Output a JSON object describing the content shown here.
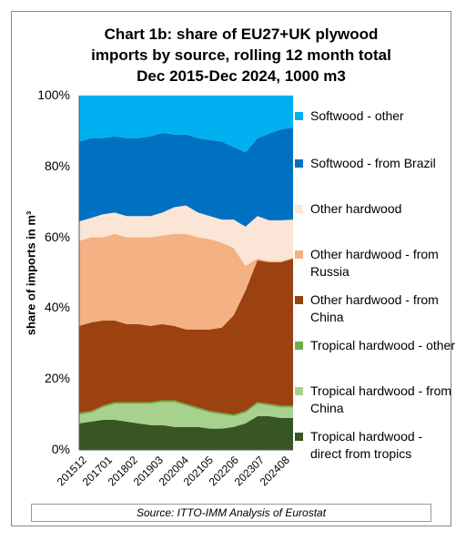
{
  "chart_data": {
    "type": "area",
    "stacked": true,
    "percent": true,
    "title_lines": [
      "Chart 1b: share of EU27+UK plywood",
      "imports by source, rolling 12 month total",
      "Dec 2015-Dec 2024, 1000 m3"
    ],
    "ylabel": "share of imports in m³",
    "xlabel": "",
    "ylim": [
      0,
      100
    ],
    "yticks": [
      "0%",
      "20%",
      "40%",
      "60%",
      "80%",
      "100%"
    ],
    "xtick_labels": [
      "201512",
      "201701",
      "201802",
      "201903",
      "202004",
      "202105",
      "202206",
      "202307",
      "202408"
    ],
    "x": [
      "2015-12",
      "2016-06",
      "2016-12",
      "2017-06",
      "2017-12",
      "2018-06",
      "2018-12",
      "2019-06",
      "2019-12",
      "2020-06",
      "2020-12",
      "2021-06",
      "2021-12",
      "2022-06",
      "2022-12",
      "2023-06",
      "2023-12",
      "2024-06",
      "2024-12"
    ],
    "legend_position": "right",
    "series": [
      {
        "name": "Tropical hardwood - direct from tropics",
        "color": "#375623",
        "values": [
          7.5,
          8.0,
          8.5,
          8.5,
          8.0,
          7.5,
          7.0,
          7.0,
          6.5,
          6.5,
          6.5,
          6.0,
          6.0,
          6.5,
          7.5,
          9.5,
          9.5,
          9.0,
          9.0
        ]
      },
      {
        "name": "Tropical hardwood - from China",
        "color": "#a9d18e",
        "values": [
          2.5,
          2.5,
          3.5,
          4.5,
          5.0,
          5.5,
          6.0,
          6.5,
          7.0,
          6.0,
          5.0,
          4.5,
          4.0,
          3.0,
          3.0,
          3.5,
          3.0,
          3.0,
          3.0
        ]
      },
      {
        "name": "Tropical hardwood - other",
        "color": "#70ad47",
        "values": [
          0.5,
          0.5,
          0.5,
          0.5,
          0.5,
          0.5,
          0.5,
          0.5,
          0.5,
          0.5,
          0.5,
          0.5,
          0.5,
          0.5,
          0.5,
          0.5,
          0.5,
          0.5,
          0.5
        ]
      },
      {
        "name": "Other hardwood - from China",
        "color": "#9c4110",
        "values": [
          24.5,
          25.0,
          24.0,
          23.0,
          22.0,
          22.0,
          21.5,
          21.5,
          21.0,
          21.0,
          22.0,
          23.0,
          24.0,
          28.0,
          34.0,
          40.0,
          40.0,
          40.5,
          41.5
        ]
      },
      {
        "name": "Other hardwood - from Russia",
        "color": "#f4b183",
        "values": [
          24.0,
          24.0,
          23.5,
          24.5,
          24.5,
          24.5,
          25.0,
          25.0,
          26.0,
          27.0,
          26.0,
          25.5,
          24.0,
          19.0,
          7.0,
          0.5,
          0.3,
          0.3,
          0.3
        ]
      },
      {
        "name": "Other hardwood",
        "color": "#fbe5d6",
        "values": [
          5.5,
          5.5,
          6.5,
          6.0,
          6.0,
          6.0,
          6.0,
          6.5,
          7.5,
          8.0,
          7.0,
          6.5,
          6.5,
          8.0,
          11.0,
          12.0,
          11.5,
          11.5,
          10.7
        ]
      },
      {
        "name": "Softwood - from Brazil",
        "color": "#0070c0",
        "values": [
          22.5,
          22.5,
          21.5,
          21.5,
          22.0,
          22.0,
          22.5,
          22.5,
          20.5,
          20.0,
          21.0,
          21.5,
          22.0,
          20.5,
          21.0,
          22.0,
          24.5,
          25.7,
          26.0
        ]
      },
      {
        "name": "Softwood - other",
        "color": "#00b0f0",
        "values": [
          13.0,
          12.0,
          12.0,
          11.5,
          12.0,
          12.0,
          11.5,
          11.0,
          11.0,
          11.0,
          12.0,
          12.5,
          13.0,
          14.5,
          16.0,
          12.0,
          10.7,
          9.5,
          9.0
        ]
      }
    ]
  },
  "source": "Source: ITTO-IMM Analysis of Eurostat"
}
